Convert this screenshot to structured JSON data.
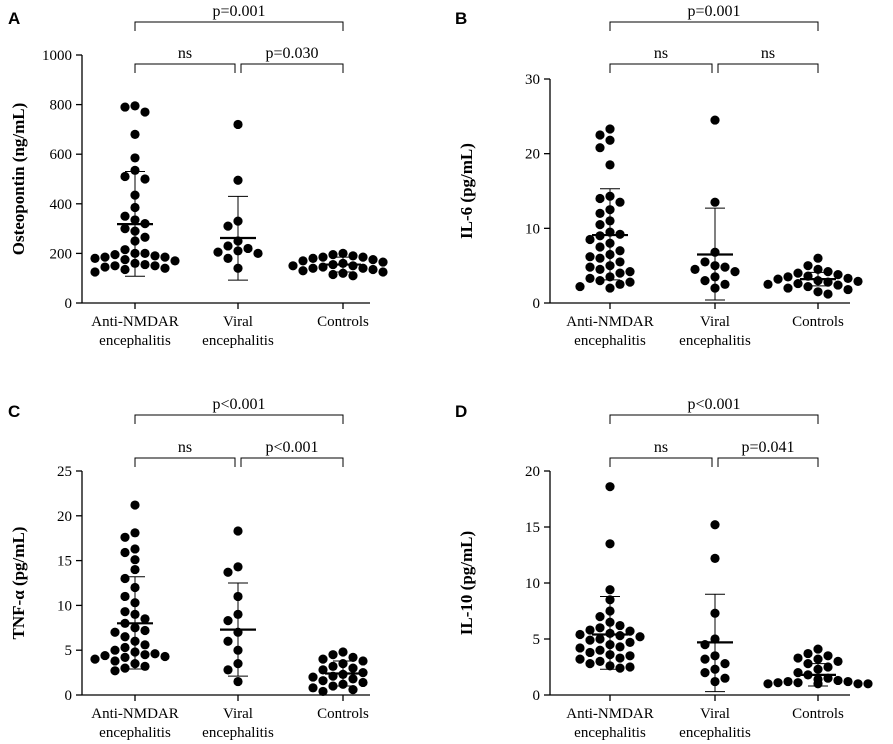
{
  "chart_data": [
    {
      "type": "scatter",
      "letter": "A",
      "ylabel": "Osteopontin (ng/mL)",
      "ylim": [
        0,
        1000
      ],
      "yticks": [
        "0",
        "200",
        "400",
        "600",
        "800",
        "1000"
      ],
      "categories": [
        "Anti-NMDAR encephalitis",
        "Viral encephalitis",
        "Controls"
      ],
      "category_lines": [
        [
          "Anti-NMDAR",
          "encephalitis"
        ],
        [
          "Viral",
          "encephalitis"
        ],
        [
          "Controls"
        ]
      ],
      "groups": [
        {
          "name": "Anti-NMDAR encephalitis",
          "mean": 318,
          "sd_low": 108,
          "sd_high": 530,
          "values": [
            795,
            790,
            770,
            680,
            585,
            535,
            510,
            500,
            435,
            385,
            350,
            335,
            320,
            300,
            290,
            265,
            250,
            215,
            200,
            200,
            195,
            190,
            185,
            185,
            180,
            175,
            170,
            160,
            155,
            150,
            150,
            145,
            140,
            135,
            125
          ]
        },
        {
          "name": "Viral encephalitis",
          "mean": 262,
          "sd_low": 92,
          "sd_high": 430,
          "values": [
            720,
            495,
            330,
            310,
            250,
            230,
            220,
            210,
            205,
            200,
            180,
            140
          ]
        },
        {
          "name": "Controls",
          "mean": 155,
          "sd_low": 125,
          "sd_high": 185,
          "values": [
            200,
            195,
            190,
            185,
            185,
            180,
            175,
            170,
            165,
            160,
            155,
            150,
            150,
            145,
            140,
            140,
            135,
            130,
            125,
            120,
            115,
            110
          ]
        }
      ],
      "comparisons": [
        {
          "pair": [
            0,
            2
          ],
          "label": "p=0.001"
        },
        {
          "pair": [
            0,
            1
          ],
          "label": "ns"
        },
        {
          "pair": [
            1,
            2
          ],
          "label": "p=0.030"
        }
      ]
    },
    {
      "type": "scatter",
      "letter": "B",
      "ylabel": "IL-6 (pg/mL)",
      "ylim": [
        0,
        30
      ],
      "yticks": [
        "0",
        "10",
        "20",
        "30"
      ],
      "categories": [
        "Anti-NMDAR encephalitis",
        "Viral encephalitis",
        "Controls"
      ],
      "category_lines": [
        [
          "Anti-NMDAR",
          "encephalitis"
        ],
        [
          "Viral",
          "encephalitis"
        ],
        [
          "Controls"
        ]
      ],
      "groups": [
        {
          "name": "Anti-NMDAR encephalitis",
          "mean": 9.1,
          "sd_low": 3.1,
          "sd_high": 15.3,
          "values": [
            23.3,
            22.5,
            21.8,
            20.8,
            18.5,
            14.3,
            14.0,
            13.5,
            12.5,
            12.0,
            11.0,
            10.5,
            9.5,
            9.2,
            9.0,
            8.5,
            8.0,
            7.5,
            7.0,
            6.5,
            6.2,
            6.0,
            5.5,
            5.0,
            4.8,
            4.5,
            4.2,
            4.0,
            3.5,
            3.3,
            3.0,
            2.8,
            2.5,
            2.2,
            2.0
          ]
        },
        {
          "name": "Viral encephalitis",
          "mean": 6.5,
          "sd_low": 0.4,
          "sd_high": 12.7,
          "values": [
            24.5,
            13.5,
            6.8,
            5.5,
            5.0,
            4.8,
            4.5,
            4.2,
            3.5,
            3.0,
            2.5,
            2.0
          ]
        },
        {
          "name": "Controls",
          "mean": 3.2,
          "sd_low": 2.3,
          "sd_high": 4.1,
          "values": [
            6.0,
            5.0,
            4.5,
            4.2,
            4.0,
            3.8,
            3.6,
            3.5,
            3.3,
            3.2,
            3.0,
            2.9,
            2.8,
            2.6,
            2.5,
            2.4,
            2.2,
            2.0,
            1.8,
            1.5,
            1.2
          ]
        }
      ],
      "comparisons": [
        {
          "pair": [
            0,
            2
          ],
          "label": "p=0.001"
        },
        {
          "pair": [
            0,
            1
          ],
          "label": "ns"
        },
        {
          "pair": [
            1,
            2
          ],
          "label": "ns"
        }
      ]
    },
    {
      "type": "scatter",
      "letter": "C",
      "ylabel": "TNF-α (pg/mL)",
      "ylim": [
        0,
        25
      ],
      "yticks": [
        "0",
        "5",
        "10",
        "15",
        "20",
        "25"
      ],
      "categories": [
        "Anti-NMDAR encephalitis",
        "Viral encephalitis",
        "Controls"
      ],
      "category_lines": [
        [
          "Anti-NMDAR",
          "encephalitis"
        ],
        [
          "Viral",
          "encephalitis"
        ],
        [
          "Controls"
        ]
      ],
      "groups": [
        {
          "name": "Anti-NMDAR encephalitis",
          "mean": 8.0,
          "sd_low": 2.9,
          "sd_high": 13.2,
          "values": [
            21.2,
            18.1,
            17.6,
            16.3,
            15.9,
            15.1,
            14.0,
            13.0,
            12.0,
            11.0,
            10.3,
            9.3,
            9.0,
            8.5,
            8.0,
            7.5,
            7.2,
            7.0,
            6.5,
            6.0,
            5.6,
            5.3,
            5.0,
            4.8,
            4.6,
            4.5,
            4.4,
            4.3,
            4.2,
            4.0,
            3.8,
            3.5,
            3.2,
            3.0,
            2.7
          ]
        },
        {
          "name": "Viral encephalitis",
          "mean": 7.3,
          "sd_low": 2.1,
          "sd_high": 12.5,
          "values": [
            18.3,
            14.3,
            13.7,
            11.0,
            9.0,
            8.3,
            7.0,
            6.0,
            5.0,
            3.5,
            2.8,
            1.5
          ]
        },
        {
          "name": "Controls",
          "mean": 2.4,
          "sd_low": 1.0,
          "sd_high": 3.8,
          "values": [
            4.8,
            4.5,
            4.2,
            4.0,
            3.8,
            3.5,
            3.2,
            3.0,
            2.8,
            2.5,
            2.3,
            2.1,
            2.0,
            1.8,
            1.6,
            1.4,
            1.2,
            1.0,
            0.8,
            0.6,
            0.4
          ]
        }
      ],
      "comparisons": [
        {
          "pair": [
            0,
            2
          ],
          "label": "p<0.001"
        },
        {
          "pair": [
            0,
            1
          ],
          "label": "ns"
        },
        {
          "pair": [
            1,
            2
          ],
          "label": "p<0.001"
        }
      ]
    },
    {
      "type": "scatter",
      "letter": "D",
      "ylabel": "IL-10 (pg/mL)",
      "ylim": [
        0,
        20
      ],
      "yticks": [
        "0",
        "5",
        "10",
        "15",
        "20"
      ],
      "categories": [
        "Anti-NMDAR encephalitis",
        "Viral encephalitis",
        "Controls"
      ],
      "category_lines": [
        [
          "Anti-NMDAR",
          "encephalitis"
        ],
        [
          "Viral",
          "encephalitis"
        ],
        [
          "Controls"
        ]
      ],
      "groups": [
        {
          "name": "Anti-NMDAR encephalitis",
          "mean": 5.4,
          "sd_low": 2.3,
          "sd_high": 8.8,
          "values": [
            18.6,
            13.5,
            9.4,
            8.5,
            7.5,
            7.0,
            6.5,
            6.2,
            6.0,
            5.8,
            5.7,
            5.5,
            5.4,
            5.3,
            5.2,
            5.0,
            4.9,
            4.7,
            4.5,
            4.3,
            4.2,
            4.0,
            3.8,
            3.6,
            3.5,
            3.3,
            3.2,
            3.0,
            2.8,
            2.6,
            2.5,
            2.4
          ]
        },
        {
          "name": "Viral encephalitis",
          "mean": 4.7,
          "sd_low": 0.3,
          "sd_high": 9.0,
          "values": [
            15.2,
            12.2,
            7.3,
            5.0,
            4.5,
            3.5,
            3.2,
            2.8,
            2.3,
            2.0,
            1.5,
            1.2
          ]
        },
        {
          "name": "Controls",
          "mean": 1.8,
          "sd_low": 0.8,
          "sd_high": 2.8,
          "values": [
            4.1,
            3.7,
            3.5,
            3.3,
            3.2,
            3.0,
            2.8,
            2.5,
            2.3,
            2.0,
            1.8,
            1.5,
            1.4,
            1.3,
            1.2,
            1.2,
            1.1,
            1.1,
            1.0,
            1.0,
            1.0,
            1.0
          ]
        }
      ],
      "comparisons": [
        {
          "pair": [
            0,
            2
          ],
          "label": "p<0.001"
        },
        {
          "pair": [
            0,
            1
          ],
          "label": "ns"
        },
        {
          "pair": [
            1,
            2
          ],
          "label": "p=0.041"
        }
      ]
    }
  ]
}
